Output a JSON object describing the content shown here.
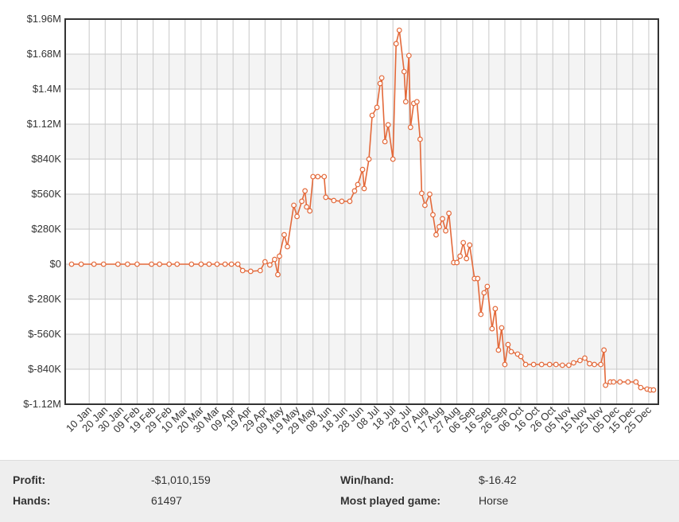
{
  "chart_data": {
    "type": "line",
    "color": "#e3693a",
    "grid": true,
    "xlim": [
      -5,
      366
    ],
    "ylim": [
      -1120000,
      1960000
    ],
    "yticks": [
      {
        "value": -1120000,
        "label": "$-1.12M"
      },
      {
        "value": -840000,
        "label": "$-840K"
      },
      {
        "value": -560000,
        "label": "$-560K"
      },
      {
        "value": -280000,
        "label": "$-280K"
      },
      {
        "value": 0,
        "label": "$0"
      },
      {
        "value": 280000,
        "label": "$280K"
      },
      {
        "value": 560000,
        "label": "$560K"
      },
      {
        "value": 840000,
        "label": "$840K"
      },
      {
        "value": 1120000,
        "label": "$1.12M"
      },
      {
        "value": 1400000,
        "label": "$1.4M"
      },
      {
        "value": 1680000,
        "label": "$1.68M"
      },
      {
        "value": 1960000,
        "label": "$1.96M"
      }
    ],
    "xticks": [
      {
        "value": 10,
        "label": "10 Jan"
      },
      {
        "value": 20,
        "label": "20 Jan"
      },
      {
        "value": 30,
        "label": "30 Jan"
      },
      {
        "value": 40,
        "label": "09 Feb"
      },
      {
        "value": 50,
        "label": "19 Feb"
      },
      {
        "value": 60,
        "label": "29 Feb"
      },
      {
        "value": 70,
        "label": "10 Mar"
      },
      {
        "value": 80,
        "label": "20 Mar"
      },
      {
        "value": 90,
        "label": "30 Mar"
      },
      {
        "value": 100,
        "label": "09 Apr"
      },
      {
        "value": 110,
        "label": "19 Apr"
      },
      {
        "value": 120,
        "label": "29 Apr"
      },
      {
        "value": 130,
        "label": "09 May"
      },
      {
        "value": 140,
        "label": "19 May"
      },
      {
        "value": 150,
        "label": "29 May"
      },
      {
        "value": 160,
        "label": "08 Jun"
      },
      {
        "value": 170,
        "label": "18 Jun"
      },
      {
        "value": 180,
        "label": "28 Jun"
      },
      {
        "value": 190,
        "label": "08 Jul"
      },
      {
        "value": 200,
        "label": "18 Jul"
      },
      {
        "value": 210,
        "label": "28 Jul"
      },
      {
        "value": 220,
        "label": "07 Aug"
      },
      {
        "value": 230,
        "label": "17 Aug"
      },
      {
        "value": 240,
        "label": "27 Aug"
      },
      {
        "value": 250,
        "label": "06 Sep"
      },
      {
        "value": 260,
        "label": "16 Sep"
      },
      {
        "value": 270,
        "label": "26 Sep"
      },
      {
        "value": 280,
        "label": "06 Oct"
      },
      {
        "value": 290,
        "label": "16 Oct"
      },
      {
        "value": 300,
        "label": "26 Oct"
      },
      {
        "value": 310,
        "label": "05 Nov"
      },
      {
        "value": 320,
        "label": "15 Nov"
      },
      {
        "value": 330,
        "label": "25 Nov"
      },
      {
        "value": 340,
        "label": "05 Dec"
      },
      {
        "value": 350,
        "label": "15 Dec"
      },
      {
        "value": 360,
        "label": "25 Dec"
      }
    ],
    "x": [
      -1,
      5,
      13,
      19,
      28,
      34,
      40,
      49,
      54,
      60,
      65,
      74,
      80,
      85,
      90,
      95,
      99,
      103,
      106,
      111,
      117,
      120,
      123,
      126,
      128,
      129,
      132,
      134,
      138,
      140,
      143,
      145,
      146,
      148,
      150,
      153,
      157,
      158,
      163,
      168,
      173,
      176,
      178,
      181,
      182,
      185,
      187,
      190,
      192,
      193,
      195,
      197,
      200,
      202,
      204,
      207,
      208,
      210,
      211,
      213,
      215,
      217,
      218,
      220,
      223,
      225,
      227,
      229,
      231,
      233,
      235,
      238,
      240,
      242,
      244,
      246,
      248,
      251,
      253,
      255,
      257,
      259,
      262,
      264,
      266,
      268,
      270,
      272,
      274,
      278,
      280,
      283,
      288,
      293,
      298,
      302,
      306,
      310,
      313,
      317,
      320,
      323,
      326,
      330,
      332,
      333,
      336,
      338,
      342,
      347,
      352,
      355,
      359,
      361,
      363
    ],
    "values": [
      0,
      0,
      0,
      0,
      0,
      0,
      0,
      0,
      0,
      0,
      0,
      0,
      0,
      0,
      0,
      0,
      0,
      0,
      -51000,
      -57000,
      -51000,
      19000,
      -6000,
      38000,
      -83000,
      64000,
      235000,
      140000,
      471000,
      382000,
      503000,
      586000,
      458000,
      426000,
      700000,
      700000,
      700000,
      535000,
      509000,
      503000,
      503000,
      586000,
      637000,
      757000,
      605000,
      840000,
      1190000,
      1254000,
      1445000,
      1490000,
      980000,
      1114000,
      840000,
      1763000,
      1871000,
      1540000,
      1299000,
      1668000,
      1095000,
      1286000,
      1299000,
      999000,
      567000,
      471000,
      560000,
      395000,
      235000,
      299000,
      363000,
      267000,
      407000,
      13000,
      13000,
      64000,
      172000,
      45000,
      153000,
      -115000,
      -115000,
      -401000,
      -229000,
      -178000,
      -516000,
      -356000,
      -687000,
      -509000,
      -802000,
      -643000,
      -700000,
      -719000,
      -738000,
      -802000,
      -802000,
      -802000,
      -802000,
      -802000,
      -808000,
      -808000,
      -789000,
      -770000,
      -751000,
      -796000,
      -802000,
      -802000,
      -687000,
      -968000,
      -942000,
      -942000,
      -942000,
      -942000,
      -942000,
      -987000,
      -999000,
      -1006000,
      -1006000
    ]
  },
  "stats": [
    {
      "label": "Profit:",
      "value": "-$1,010,159"
    },
    {
      "label": "Win/hand:",
      "value": "$-16.42"
    },
    {
      "label": "Hands:",
      "value": 61497
    },
    {
      "label": "Most played game:",
      "value": "Horse"
    }
  ]
}
